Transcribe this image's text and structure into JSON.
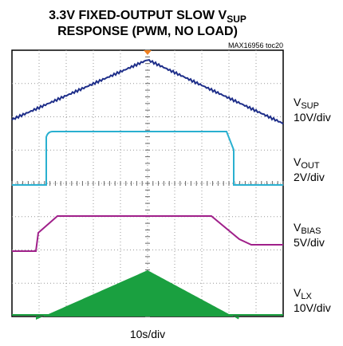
{
  "header": {
    "title_main": "3.3V FIXED-OUTPUT SLOW V",
    "title_sub": "SUP",
    "title_line2": "RESPONSE (PWM, NO LOAD)",
    "figure_id": "MAX16956 toc20"
  },
  "channels": [
    {
      "symbol": "V",
      "sub": "SUP",
      "scale": "10V/div"
    },
    {
      "symbol": "V",
      "sub": "OUT",
      "scale": "2V/div"
    },
    {
      "symbol": "V",
      "sub": "BIAS",
      "scale": "5V/div"
    },
    {
      "symbol": "V",
      "sub": "LX",
      "scale": "10V/div"
    }
  ],
  "timebase": "10s/div"
}
